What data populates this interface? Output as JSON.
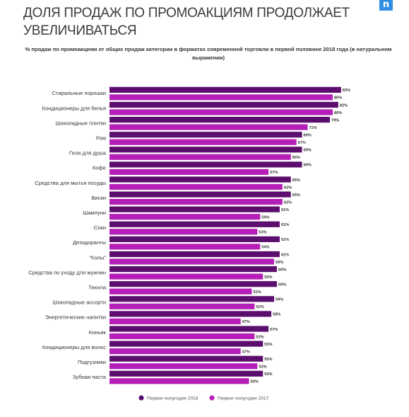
{
  "header": {
    "title": "ДОЛЯ ПРОДАЖ ПО ПРОМОАКЦИЯМ ПРОДОЛЖАЕТ УВЕЛИЧИВАТЬСЯ",
    "logo_text": "n"
  },
  "chart_data": {
    "type": "bar",
    "orientation": "horizontal",
    "title": "ДОЛЯ ПРОДАЖ ПО ПРОМОАКЦИЯМ ПРОДОЛЖАЕТ УВЕЛИЧИВАТЬСЯ",
    "subtitle": "% продаж по промоакциям от общих продаж категории в форматах современной торговли в первой половине 2018 года (в натуральном выражении)",
    "categories": [
      "Стиральные порошки",
      "Кондиционеры для белья",
      "Шоколадные плитки",
      "Ром",
      "Гели для душа",
      "Кофе",
      "Средства для мытья посуды",
      "Виски",
      "Шампуни",
      "Соки",
      "Дезодоранты",
      "\"Колы\"",
      "Средства по уходу для мужчин",
      "Текила",
      "Шоколадные ассорти",
      "Энергетические напитки",
      "Коньяк",
      "Кондиционеры для волос",
      "Подгузники",
      "Зубная паста"
    ],
    "series": [
      {
        "name": "Первое полугодие 2018",
        "color": "#5c0e6e",
        "values": [
          83,
          82,
          79,
          69,
          69,
          69,
          65,
          65,
          61,
          61,
          61,
          61,
          60,
          60,
          59,
          58,
          57,
          55,
          55,
          55
        ]
      },
      {
        "name": "Первое полугодие 2017",
        "color": "#b51fb8",
        "values": [
          80,
          80,
          71,
          67,
          65,
          57,
          62,
          62,
          54,
          53,
          54,
          59,
          55,
          51,
          52,
          47,
          52,
          47,
          53,
          50
        ]
      }
    ],
    "value_suffix": "%",
    "xlim": [
      0,
      100
    ],
    "grid": false,
    "legend_position": "bottom"
  }
}
